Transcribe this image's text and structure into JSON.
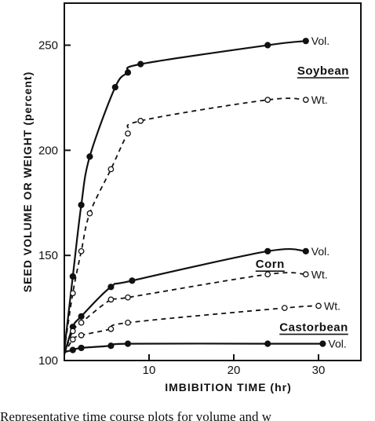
{
  "chart_data": {
    "type": "line",
    "title": "",
    "xlabel": "IMBIBITION TIME (hr)",
    "ylabel": "SEED VOLUME OR WEIGHT (percent)",
    "xlim": [
      0,
      35
    ],
    "ylim": [
      100,
      270
    ],
    "x_ticks": [
      10,
      20,
      30
    ],
    "y_ticks": [
      100,
      150,
      200,
      250
    ],
    "grid": false,
    "crop_labels": [
      "Soybean",
      "Corn",
      "Castorbean"
    ],
    "series": [
      {
        "name": "Vol.",
        "crop": "Soybean",
        "marker": "filled",
        "style": "solid",
        "x": [
          0,
          1,
          2,
          3,
          6,
          7.5,
          9,
          24,
          28.5
        ],
        "y": [
          105,
          140,
          174,
          197,
          230,
          237,
          241,
          250,
          252
        ]
      },
      {
        "name": "Wt.",
        "crop": "Soybean",
        "marker": "open",
        "style": "dashed",
        "x": [
          0,
          1,
          2,
          3,
          5.5,
          7.5,
          9,
          24,
          28.5
        ],
        "y": [
          105,
          132,
          152,
          170,
          191,
          208,
          214,
          224,
          224
        ]
      },
      {
        "name": "Vol.",
        "crop": "Corn",
        "marker": "filled",
        "style": "solid",
        "x": [
          0,
          1,
          2,
          5.5,
          8,
          24,
          28.5
        ],
        "y": [
          103,
          116,
          121,
          135,
          138,
          152,
          152
        ]
      },
      {
        "name": "Wt.",
        "crop": "Corn",
        "marker": "open",
        "style": "dashed",
        "x": [
          0,
          1,
          2,
          5.5,
          7.5,
          24,
          28.5
        ],
        "y": [
          103,
          114,
          118,
          129,
          130,
          141,
          141
        ]
      },
      {
        "name": "Wt.",
        "crop": "Castorbean",
        "marker": "open",
        "style": "dashed",
        "x": [
          0,
          1,
          2,
          5.5,
          7.5,
          26,
          30
        ],
        "y": [
          103,
          110,
          112,
          115,
          118,
          125,
          126
        ]
      },
      {
        "name": "Vol.",
        "crop": "Castorbean",
        "marker": "filled",
        "style": "solid",
        "x": [
          0,
          1,
          2,
          5.5,
          7.5,
          24,
          30.5
        ],
        "y": [
          104,
          105,
          106,
          107,
          108,
          108,
          108
        ]
      }
    ]
  },
  "caption": "Representative time course plots for volume and w"
}
